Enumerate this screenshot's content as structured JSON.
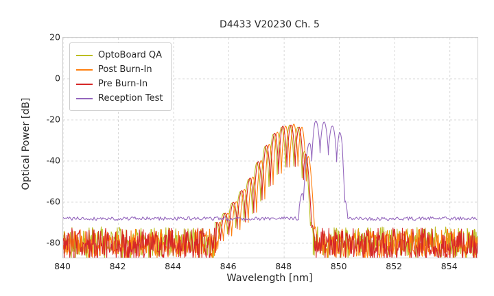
{
  "chart_data": {
    "type": "line",
    "title": "D4433 V20230 Ch. 5",
    "xlabel": "Wavelength [nm]",
    "ylabel": "Optical Power [dB]",
    "xlim": [
      840,
      855
    ],
    "ylim": [
      -87,
      20
    ],
    "xticks": [
      840,
      842,
      844,
      846,
      848,
      850,
      852,
      854
    ],
    "yticks": [
      20,
      0,
      -20,
      -40,
      -60,
      -80
    ],
    "grid": true,
    "legend_position": "upper left",
    "series": [
      {
        "name": "OptoBoard QA",
        "color": "#bcbd22",
        "segments": [
          {
            "type": "noise",
            "x0": 840,
            "x1": 845.5,
            "base": -79,
            "amp": 7,
            "seed": 11
          },
          {
            "type": "modes",
            "x0": 845.5,
            "x1": 849.05,
            "spacing": 0.3,
            "phase": 0.5,
            "top": [
              [
                845.5,
                -70
              ],
              [
                845.9,
                -64
              ],
              [
                846.3,
                -57
              ],
              [
                846.7,
                -49
              ],
              [
                847.0,
                -41
              ],
              [
                847.3,
                -33
              ],
              [
                847.6,
                -27
              ],
              [
                847.9,
                -23.5
              ],
              [
                848.2,
                -22.5
              ],
              [
                848.5,
                -23.5
              ],
              [
                848.7,
                -28
              ],
              [
                848.85,
                -45
              ],
              [
                849.05,
                -75
              ]
            ],
            "bottom": [
              [
                845.5,
                -79
              ],
              [
                845.9,
                -76
              ],
              [
                846.3,
                -72
              ],
              [
                846.7,
                -68
              ],
              [
                847.0,
                -63
              ],
              [
                847.3,
                -56
              ],
              [
                847.6,
                -49
              ],
              [
                847.9,
                -44
              ],
              [
                848.2,
                -42
              ],
              [
                848.5,
                -43
              ],
              [
                848.7,
                -50
              ],
              [
                848.85,
                -63
              ],
              [
                849.05,
                -80
              ]
            ]
          },
          {
            "type": "noise",
            "x0": 849.05,
            "x1": 855,
            "base": -79,
            "amp": 7,
            "seed": 12
          }
        ]
      },
      {
        "name": "Post Burn-In",
        "color": "#ff7f0e",
        "segments": [
          {
            "type": "noise",
            "x0": 840,
            "x1": 845.65,
            "base": -80,
            "amp": 7,
            "seed": 21
          },
          {
            "type": "modes",
            "x0": 845.65,
            "x1": 849.2,
            "spacing": 0.3,
            "phase": 0.5,
            "top": [
              [
                845.65,
                -70
              ],
              [
                846.05,
                -64
              ],
              [
                846.45,
                -56
              ],
              [
                846.85,
                -48
              ],
              [
                847.15,
                -40
              ],
              [
                847.45,
                -32
              ],
              [
                847.75,
                -26
              ],
              [
                848.05,
                -23
              ],
              [
                848.35,
                -22
              ],
              [
                848.65,
                -23.5
              ],
              [
                848.85,
                -30
              ],
              [
                849.0,
                -50
              ],
              [
                849.2,
                -78
              ]
            ],
            "bottom": [
              [
                845.65,
                -80
              ],
              [
                846.05,
                -77
              ],
              [
                846.45,
                -73
              ],
              [
                846.85,
                -68
              ],
              [
                847.15,
                -62
              ],
              [
                847.45,
                -55
              ],
              [
                847.75,
                -48
              ],
              [
                848.05,
                -44
              ],
              [
                848.35,
                -42
              ],
              [
                848.65,
                -43
              ],
              [
                848.85,
                -52
              ],
              [
                849.0,
                -65
              ],
              [
                849.2,
                -81
              ]
            ]
          },
          {
            "type": "noise",
            "x0": 849.2,
            "x1": 855,
            "base": -80,
            "amp": 7,
            "seed": 22
          }
        ]
      },
      {
        "name": "Pre Burn-In",
        "color": "#d62728",
        "segments": [
          {
            "type": "noise",
            "x0": 840,
            "x1": 845.55,
            "base": -80,
            "amp": 7.5,
            "seed": 31
          },
          {
            "type": "modes",
            "x0": 845.55,
            "x1": 849.1,
            "spacing": 0.3,
            "phase": 0.5,
            "top": [
              [
                845.55,
                -70
              ],
              [
                845.95,
                -64
              ],
              [
                846.35,
                -56.5
              ],
              [
                846.75,
                -48.5
              ],
              [
                847.05,
                -40.5
              ],
              [
                847.35,
                -32.5
              ],
              [
                847.65,
                -26.5
              ],
              [
                847.95,
                -23
              ],
              [
                848.25,
                -22.5
              ],
              [
                848.55,
                -23.5
              ],
              [
                848.75,
                -29
              ],
              [
                848.9,
                -48
              ],
              [
                849.1,
                -77
              ]
            ],
            "bottom": [
              [
                845.55,
                -80
              ],
              [
                845.95,
                -76.5
              ],
              [
                846.35,
                -72.5
              ],
              [
                846.75,
                -68
              ],
              [
                847.05,
                -62.5
              ],
              [
                847.35,
                -55.5
              ],
              [
                847.65,
                -48.5
              ],
              [
                847.95,
                -44
              ],
              [
                848.25,
                -42
              ],
              [
                848.55,
                -43.5
              ],
              [
                848.75,
                -51
              ],
              [
                848.9,
                -64
              ],
              [
                849.1,
                -81
              ]
            ]
          },
          {
            "type": "noise",
            "x0": 849.1,
            "x1": 855,
            "base": -80,
            "amp": 7.5,
            "seed": 32
          }
        ]
      },
      {
        "name": "Reception Test",
        "color": "#9467bd",
        "segments": [
          {
            "type": "flat",
            "x0": 840,
            "x1": 848.55,
            "level": -68,
            "amp": 0.9,
            "seed": 41
          },
          {
            "type": "modes",
            "x0": 848.55,
            "x1": 850.3,
            "spacing": 0.3,
            "phase": 0.5,
            "top": [
              [
                848.55,
                -62
              ],
              [
                848.75,
                -42
              ],
              [
                848.95,
                -26
              ],
              [
                849.1,
                -20.5
              ],
              [
                849.45,
                -21
              ],
              [
                849.75,
                -23
              ],
              [
                850.0,
                -24.5
              ],
              [
                850.1,
                -30
              ],
              [
                850.22,
                -55
              ],
              [
                850.3,
                -67
              ]
            ],
            "bottom": [
              [
                848.55,
                -68
              ],
              [
                848.75,
                -56
              ],
              [
                848.95,
                -42
              ],
              [
                849.1,
                -36
              ],
              [
                849.45,
                -36
              ],
              [
                849.75,
                -38
              ],
              [
                850.0,
                -42
              ],
              [
                850.1,
                -50
              ],
              [
                850.22,
                -62
              ],
              [
                850.3,
                -68
              ]
            ]
          },
          {
            "type": "flat",
            "x0": 850.3,
            "x1": 855,
            "level": -68,
            "amp": 0.9,
            "seed": 42
          }
        ]
      }
    ]
  }
}
